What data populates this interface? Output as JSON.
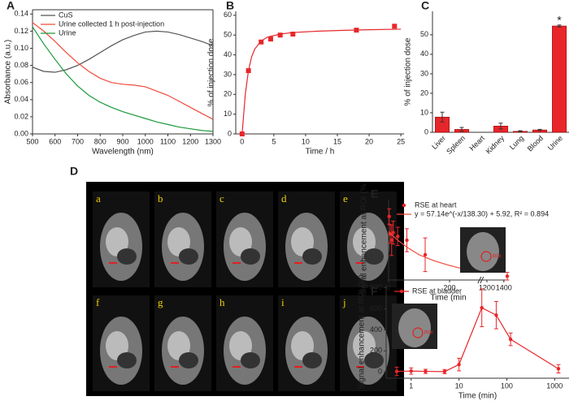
{
  "chart_data": [
    {
      "type": "line",
      "panel": "A",
      "xlabel": "Wavelength (nm)",
      "ylabel": "Absorbance (a.u.)",
      "box": true,
      "legend": "upper left",
      "x": [
        500,
        550,
        600,
        650,
        700,
        750,
        800,
        850,
        900,
        950,
        1000,
        1050,
        1100,
        1150,
        1200,
        1250,
        1300
      ],
      "series": [
        {
          "name": "CuS",
          "color": "#555555",
          "style": "line",
          "values": [
            0.078,
            0.073,
            0.072,
            0.075,
            0.08,
            0.087,
            0.095,
            0.103,
            0.11,
            0.115,
            0.119,
            0.12,
            0.119,
            0.116,
            0.112,
            0.108,
            0.103
          ]
        },
        {
          "name": "Urine collected 1 h post-injection",
          "color": "#f04a3a",
          "style": "line",
          "values": [
            0.13,
            0.12,
            0.108,
            0.095,
            0.083,
            0.073,
            0.065,
            0.06,
            0.058,
            0.057,
            0.055,
            0.05,
            0.045,
            0.038,
            0.031,
            0.024,
            0.017
          ]
        },
        {
          "name": "Urine",
          "color": "#1a9a3a",
          "style": "line",
          "values": [
            0.125,
            0.105,
            0.087,
            0.07,
            0.056,
            0.045,
            0.037,
            0.031,
            0.026,
            0.022,
            0.018,
            0.014,
            0.011,
            0.008,
            0.006,
            0.004,
            0.003
          ]
        }
      ],
      "xlim": [
        500,
        1300
      ],
      "xticks": [
        500,
        600,
        700,
        800,
        900,
        1000,
        1100,
        1200,
        1300
      ],
      "ylim": [
        0,
        0.145
      ],
      "yticks": [
        {
          "value": 0,
          "label": "0.00"
        },
        {
          "value": 0.02,
          "label": "0.02"
        },
        {
          "value": 0.04,
          "label": "0.04"
        },
        {
          "value": 0.06,
          "label": "0.06"
        },
        {
          "value": 0.08,
          "label": "0.08"
        },
        {
          "value": 0.1,
          "label": "0.10"
        },
        {
          "value": 0.12,
          "label": "0.12"
        },
        {
          "value": 0.14,
          "label": "0.14"
        }
      ]
    },
    {
      "type": "scatter",
      "panel": "B",
      "xlabel": "Time / h",
      "ylabel": "% of injection dose",
      "series": [
        {
          "color": "#e8262a",
          "style": "markers",
          "marker": "square",
          "x": [
            0,
            1,
            3,
            4.5,
            6,
            8,
            18,
            24
          ],
          "values": [
            0,
            32,
            46.5,
            48,
            50,
            50.5,
            52.5,
            54.5
          ]
        },
        {
          "color": "#e8262a",
          "style": "line",
          "x": [
            0,
            0.5,
            1,
            1.5,
            2,
            3,
            4,
            6,
            8,
            12,
            16,
            20,
            25
          ],
          "values": [
            0,
            20,
            32,
            39,
            43,
            47,
            49,
            50.5,
            51.3,
            52,
            52.4,
            52.7,
            53
          ]
        }
      ],
      "xlim": [
        -1,
        25.5
      ],
      "xticks": [
        0,
        5,
        10,
        15,
        20,
        25
      ],
      "ylim": [
        0,
        62
      ],
      "yticks": [
        0,
        10,
        20,
        30,
        40,
        50,
        60
      ]
    },
    {
      "type": "bar",
      "panel": "C",
      "ylabel": "% of injection dose",
      "color": "#e8262a",
      "categories": [
        "Liver",
        "Spleen",
        "Heart",
        "Kidney",
        "Lung",
        "Blood",
        "Urine"
      ],
      "values": [
        7.8,
        1.5,
        0,
        3.2,
        0.5,
        1.2,
        54.5
      ],
      "errors": [
        2.5,
        1,
        0,
        1.5,
        0.3,
        0.3,
        0.5
      ],
      "annotation": "*",
      "ylim": [
        0,
        62
      ],
      "yticks": [
        0,
        10,
        20,
        30,
        40,
        50
      ]
    },
    {
      "type": "scatter",
      "panel": "E",
      "xlabel": "Time  (min",
      "ylabel": "Signal enhancement at ROI (%",
      "legend": "upper left",
      "inset_label": "ROI",
      "series": [
        {
          "name": "RSE at heart",
          "color": "#e8262a",
          "style": "markers",
          "marker": "circle",
          "x": [
            2,
            5,
            10,
            15,
            30,
            60,
            120,
            1440
          ],
          "values": [
            83,
            60,
            52,
            62,
            57,
            52,
            33,
            5
          ],
          "errors": [
            10,
            12,
            20,
            15,
            12,
            15,
            22,
            5
          ]
        },
        {
          "name": "y = 57.14e^(-x/138.30) + 5.92, R² = 0.894",
          "color": "#f04a3a",
          "style": "line",
          "x": [
            0,
            30,
            60,
            100,
            150,
            200,
            250,
            290
          ],
          "values": [
            63,
            52,
            43,
            33,
            25,
            19,
            14,
            11
          ]
        }
      ],
      "xlim": [
        0,
        1450
      ],
      "xbreak": [
        290,
        1160
      ],
      "xticks": [
        0,
        200,
        1200,
        1400
      ],
      "ylim": [
        0,
        105
      ]
    },
    {
      "type": "line",
      "panel": "F",
      "xlabel": "Time (min)",
      "ylabel": "Signal enhancement at ROI (%)",
      "legend": "upper left",
      "xlog": true,
      "inset_label": "ROI",
      "series": [
        {
          "name": "RSE at bladder",
          "color": "#e8262a",
          "style": "line+markers",
          "marker": "circle",
          "x": [
            0.5,
            1,
            2,
            5,
            10,
            30,
            60,
            120,
            1200
          ],
          "values": [
            5,
            8,
            5,
            3,
            70,
            610,
            540,
            310,
            30
          ],
          "errors": [
            40,
            30,
            20,
            20,
            60,
            180,
            130,
            60,
            40
          ]
        }
      ],
      "xlim": [
        0.3,
        2000
      ],
      "xticks": [
        1,
        10,
        100,
        1000
      ],
      "ylim": [
        -60,
        820
      ],
      "yticks": [
        0,
        200,
        400,
        600,
        800
      ]
    }
  ],
  "figure_d": {
    "panel": "D",
    "frames": [
      "a",
      "b",
      "c",
      "d",
      "e",
      "f",
      "g",
      "h",
      "i",
      "j"
    ]
  }
}
